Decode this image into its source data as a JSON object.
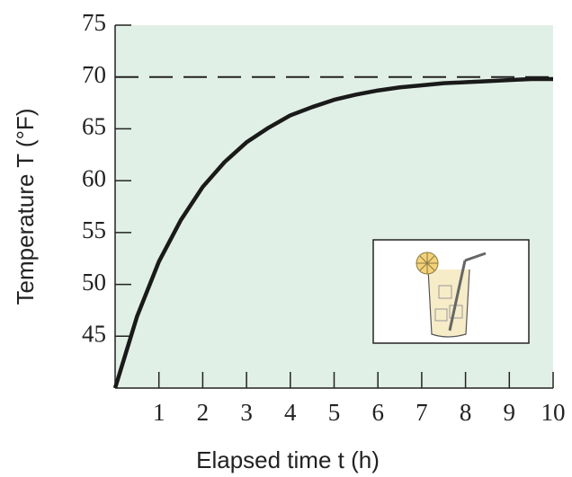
{
  "chart_data": {
    "type": "line",
    "x_label": "Elapsed time t (h)",
    "y_label": "Temperature T (°F)",
    "x": [
      0,
      0.5,
      1,
      1.5,
      2,
      2.5,
      3,
      3.5,
      4,
      4.5,
      5,
      5.5,
      6,
      6.5,
      7,
      7.5,
      8,
      8.5,
      9,
      9.5,
      10
    ],
    "series": [
      {
        "color": "#1a1a1a",
        "values": [
          40,
          46.9,
          52.2,
          56.2,
          59.4,
          61.8,
          63.7,
          65.1,
          66.3,
          67.1,
          67.8,
          68.3,
          68.7,
          69.0,
          69.2,
          69.4,
          69.5,
          69.6,
          69.7,
          69.8,
          69.8
        ]
      }
    ],
    "reference_line": 70,
    "xlim": [
      0,
      10
    ],
    "ylim": [
      40,
      75
    ],
    "xticks": [
      1,
      2,
      3,
      4,
      5,
      6,
      7,
      8,
      9,
      10
    ],
    "yticks": [
      45,
      50,
      55,
      60,
      65,
      70,
      75
    ],
    "background": "#e1f0e6"
  }
}
